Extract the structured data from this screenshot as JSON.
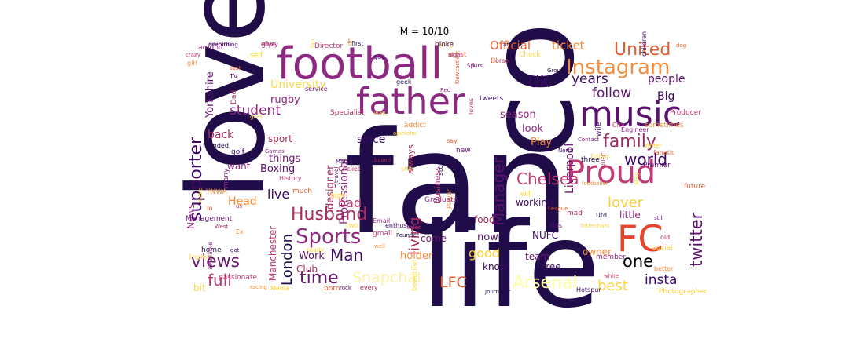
{
  "title": "M = 10/10",
  "words": [
    {
      "text": "fan",
      "color": "#1f0c48"
    },
    {
      "text": "love",
      "color": "#1f0c48"
    },
    {
      "text": "life",
      "color": "#1f0c48"
    },
    {
      "text": "co",
      "color": "#1f0c48"
    },
    {
      "text": "football",
      "color": "#8c2981"
    },
    {
      "text": "father",
      "color": "#8c2981"
    },
    {
      "text": "music",
      "color": "#5c126e"
    },
    {
      "text": "Proud",
      "color": "#c03a76"
    },
    {
      "text": "FC",
      "color": "#e4462e"
    },
    {
      "text": "Instagram",
      "color": "#f48c3b"
    },
    {
      "text": "United",
      "color": "#e55c30"
    },
    {
      "text": "supporter",
      "color": "#3d0965"
    },
    {
      "text": "Sports",
      "color": "#8c2981"
    },
    {
      "text": "Husband",
      "color": "#a92e5e"
    },
    {
      "text": "family",
      "color": "#9b2964"
    },
    {
      "text": "Manager",
      "color": "#5c126e"
    },
    {
      "text": "Chelsea",
      "color": "#c03a76"
    },
    {
      "text": "Arsenal",
      "color": "#fcffa4"
    },
    {
      "text": "Snapchat",
      "color": "#fcf1a6"
    },
    {
      "text": "LFC",
      "color": "#e55c30"
    },
    {
      "text": "views",
      "color": "#6a176e"
    },
    {
      "text": "time",
      "color": "#6a176e"
    },
    {
      "text": "Man",
      "color": "#3d0965"
    },
    {
      "text": "twitter",
      "color": "#5c126e"
    },
    {
      "text": "world",
      "color": "#3d0965"
    },
    {
      "text": "lover",
      "color": "#f7d13d"
    },
    {
      "text": "best",
      "color": "#f6d746"
    },
    {
      "text": "full",
      "color": "#c03a76"
    },
    {
      "text": "student",
      "color": "#8c2981"
    },
    {
      "text": "living",
      "color": "#a92e5e"
    },
    {
      "text": "London",
      "color": "#1f0c48"
    },
    {
      "text": "UK",
      "color": "#3d0965"
    },
    {
      "text": "follow",
      "color": "#5c126e"
    },
    {
      "text": "years",
      "color": "#3d0965"
    },
    {
      "text": "Official",
      "color": "#e55c30"
    },
    {
      "text": "ticket",
      "color": "#f48c3b"
    },
    {
      "text": "one",
      "color": "#000004"
    },
    {
      "text": "insta",
      "color": "#3d0965"
    },
    {
      "text": "Liverpool",
      "color": "#6a176e"
    },
    {
      "text": "Professional",
      "color": "#8c2981"
    },
    {
      "text": "University",
      "color": "#f6d746"
    },
    {
      "text": "Yorkshire",
      "color": "#5c126e"
    },
    {
      "text": "Big",
      "color": "#3d0965"
    },
    {
      "text": "people",
      "color": "#5c126e"
    },
    {
      "text": "live",
      "color": "#3d0965"
    },
    {
      "text": "bad",
      "color": "#c03a76"
    },
    {
      "text": "Head",
      "color": "#f48c3b"
    },
    {
      "text": "good",
      "color": "#fcd225"
    },
    {
      "text": "Boxing",
      "color": "#5c126e"
    },
    {
      "text": "designer",
      "color": "#a92e5e"
    },
    {
      "text": "News",
      "color": "#8c2981"
    },
    {
      "text": "Manchester",
      "color": "#c03a76"
    },
    {
      "text": "holder",
      "color": "#f48c3b"
    },
    {
      "text": "season",
      "color": "#8c2981"
    },
    {
      "text": "back",
      "color": "#a92e5e"
    },
    {
      "text": "look",
      "color": "#8c2981"
    },
    {
      "text": "Play",
      "color": "#f48c3b"
    },
    {
      "text": "rugby",
      "color": "#8c2981"
    },
    {
      "text": "since",
      "color": "#3d0965"
    },
    {
      "text": "things",
      "color": "#6a176e"
    },
    {
      "text": "sport",
      "color": "#a92e5e"
    },
    {
      "text": "want",
      "color": "#8c2981"
    },
    {
      "text": "Club",
      "color": "#a92e5e"
    },
    {
      "text": "Work",
      "color": "#5c126e"
    },
    {
      "text": "now",
      "color": "#5c126e"
    },
    {
      "text": "come",
      "color": "#6a176e"
    },
    {
      "text": "NUFC",
      "color": "#3d0965"
    },
    {
      "text": "team",
      "color": "#6a176e"
    },
    {
      "text": "know",
      "color": "#3d0965"
    },
    {
      "text": "free",
      "color": "#3d0965"
    },
    {
      "text": "working",
      "color": "#3d0965"
    },
    {
      "text": "food",
      "color": "#a92e5e"
    },
    {
      "text": "little",
      "color": "#8c2981"
    },
    {
      "text": "owner",
      "color": "#f48c3b"
    },
    {
      "text": "bit",
      "color": "#f6d746"
    },
    {
      "text": "business",
      "color": "#c03a76"
    },
    {
      "text": "always",
      "color": "#a92e5e"
    }
  ],
  "small_words": [
    "everything",
    "enjoy",
    "Director",
    "de",
    "trying",
    "artist",
    "Spurs",
    "Horse",
    "Check",
    "Group",
    "children",
    "around",
    "crazy",
    "girl",
    "self",
    "sast",
    "TV",
    "Dad",
    "goes",
    "founded",
    "golf",
    "Games",
    "History",
    "YNWA",
    "make",
    "In",
    "Management",
    "West",
    "English",
    "home",
    "got",
    "available",
    "passionate",
    "racing",
    "Media",
    "born",
    "rock",
    "every",
    "beautiful",
    "Journalist",
    "Hotspur",
    "member",
    "white",
    "better",
    "Photographer",
    "Newcastle",
    "service",
    "Specialist",
    "way",
    "geek",
    "tweets",
    "Red",
    "loves",
    "addict",
    "opinions",
    "say",
    "new",
    "based",
    "shit",
    "stop",
    "Married",
    "Email",
    "gmail",
    "well",
    "really",
    "much",
    "travel",
    "Cricket",
    "two",
    "Founder",
    "enthusiast",
    "Graduate",
    "Sales",
    "Player",
    "will",
    "League",
    "kids",
    "mad",
    "Tottenham",
    "Utd",
    "wife",
    "Contact",
    "City",
    "sometimes",
    "Writer",
    "fanatic",
    "Premier",
    "NUFC",
    "Editor",
    "three",
    "North",
    "Engineer",
    "Producer",
    "footballer",
    "stay",
    "future",
    "still",
    "old",
    "social",
    "art",
    "gay",
    "many",
    "us",
    "Ex",
    "high",
    "dog",
    "opinion",
    "give",
    "fan",
    "first",
    "bloke",
    "night",
    "13",
    "Cl"
  ]
}
